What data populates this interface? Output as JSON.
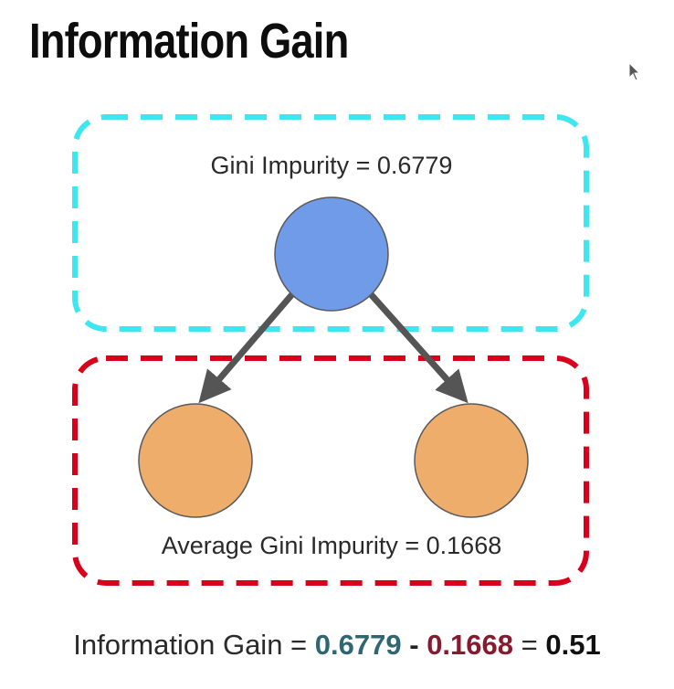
{
  "title": "Information Gain",
  "colors": {
    "parent_box": "#3ee6ef",
    "child_box": "#d9001b",
    "parent_node": "#6f9be8",
    "child_node": "#efad6b",
    "arrow": "#555555",
    "parent_value": "#2f6672",
    "child_value": "#861a2e"
  },
  "icons": {
    "cursor": "mouse-pointer-icon"
  },
  "parent": {
    "label": "Gini Impurity = 0.6779"
  },
  "children": {
    "label": "Average Gini Impurity = 0.1668"
  },
  "formula": {
    "prefix": "Information Gain =",
    "parent_value": "0.6779",
    "minus": "-",
    "child_value": "0.1668",
    "equals": "=",
    "result": "0.51"
  }
}
